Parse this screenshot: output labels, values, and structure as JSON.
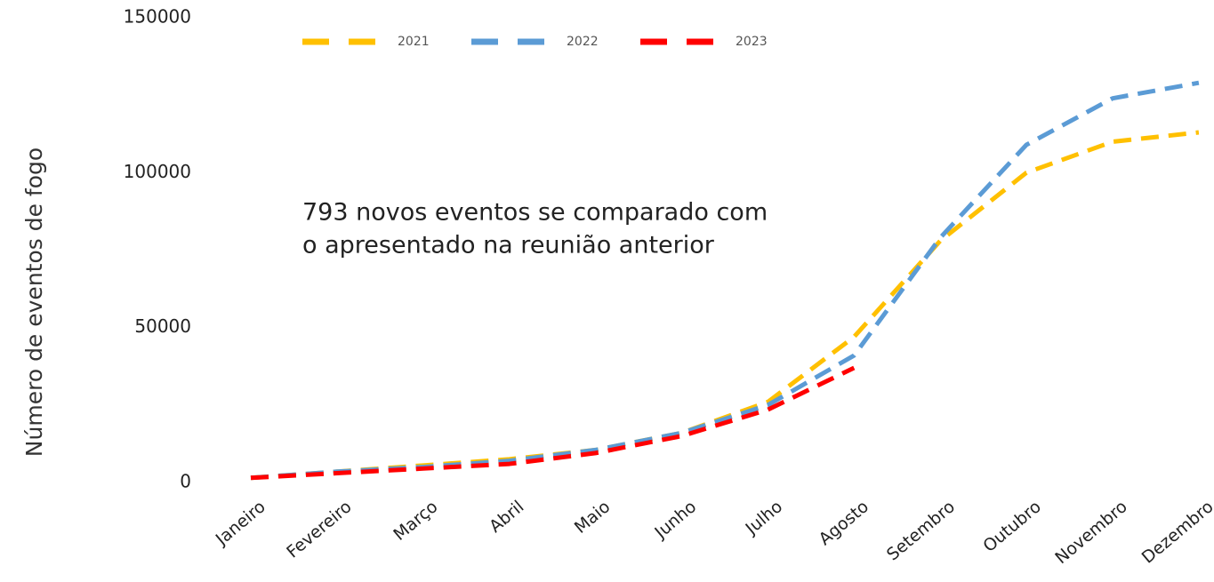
{
  "chart_data": {
    "type": "line",
    "y_label": "Número de eventos de fogo",
    "annotation": [
      "793 novos eventos se comparado com",
      "o apresentado na reunião anterior"
    ],
    "categories": [
      "Janeiro",
      "Fevereiro",
      "Março",
      "Abril",
      "Maio",
      "Junho",
      "Julho",
      "Agosto",
      "Setembro",
      "Outubro",
      "Novembro",
      "Dezembro"
    ],
    "series": [
      {
        "name": "2021",
        "color": "#ffc000",
        "values": [
          1500,
          3500,
          5500,
          7500,
          10500,
          16000,
          26000,
          47000,
          78000,
          100000,
          110000,
          113000
        ]
      },
      {
        "name": "2022",
        "color": "#5b9bd5",
        "values": [
          1500,
          3500,
          5000,
          7000,
          10500,
          16000,
          25000,
          41000,
          79000,
          109000,
          124000,
          129000
        ]
      },
      {
        "name": "2023",
        "color": "#ff0000",
        "values": [
          1500,
          3000,
          4500,
          6000,
          9500,
          15000,
          23500,
          37000,
          null,
          null,
          null,
          null
        ]
      }
    ],
    "ylim": [
      0,
      150000
    ],
    "yticks": [
      0,
      50000,
      100000,
      150000
    ],
    "grid": false,
    "legend": "top"
  }
}
